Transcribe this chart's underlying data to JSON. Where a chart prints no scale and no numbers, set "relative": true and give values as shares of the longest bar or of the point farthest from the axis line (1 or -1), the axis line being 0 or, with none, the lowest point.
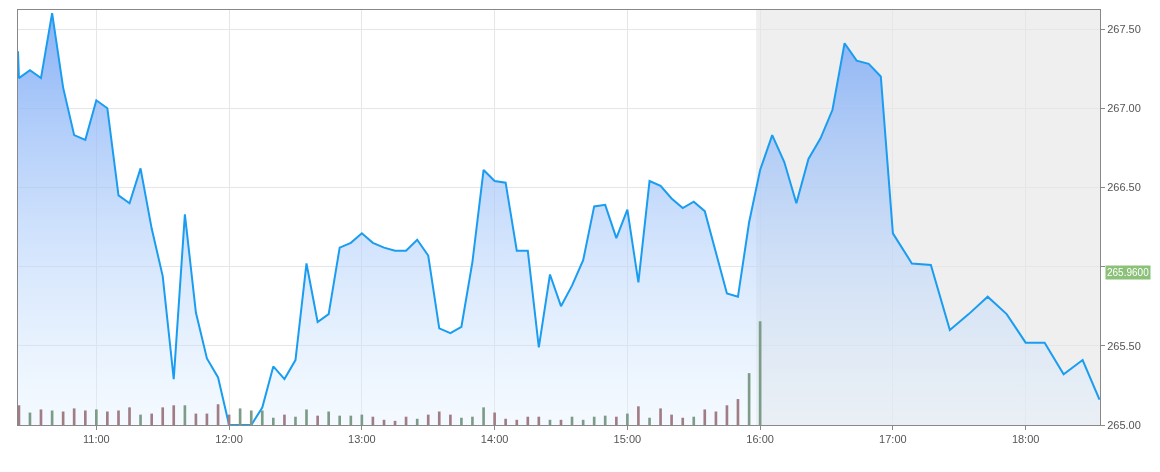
{
  "chart_data": [
    {
      "type": "area",
      "xlim": [
        10.41,
        18.56
      ],
      "ylim": [
        265.0,
        267.62
      ],
      "xticks": [
        {
          "value": 11,
          "label": "11:00"
        },
        {
          "value": 12,
          "label": "12:00"
        },
        {
          "value": 13,
          "label": "13:00"
        },
        {
          "value": 14,
          "label": "14:00"
        },
        {
          "value": 15,
          "label": "15:00"
        },
        {
          "value": 16,
          "label": "16:00"
        },
        {
          "value": 17,
          "label": "17:00"
        },
        {
          "value": 18,
          "label": "18:00"
        }
      ],
      "yticks": [
        {
          "value": 265.0,
          "label": "265.00"
        },
        {
          "value": 265.5,
          "label": "265.50"
        },
        {
          "value": 266.0,
          "label": null
        },
        {
          "value": 266.5,
          "label": "266.50"
        },
        {
          "value": 267.0,
          "label": "267.00"
        },
        {
          "value": 267.5,
          "label": "267.50"
        }
      ],
      "grid": true,
      "marker": "none",
      "line_style": "solid",
      "series": [
        {
          "color": "#1a9df0",
          "x": [
            10.41,
            10.417,
            10.5,
            10.583,
            10.667,
            10.75,
            10.833,
            10.917,
            11,
            11.083,
            11.167,
            11.25,
            11.333,
            11.417,
            11.5,
            11.583,
            11.667,
            11.75,
            11.833,
            11.917,
            12,
            12.083,
            12.167,
            12.25,
            12.333,
            12.417,
            12.5,
            12.583,
            12.667,
            12.75,
            12.833,
            12.917,
            13,
            13.083,
            13.167,
            13.25,
            13.333,
            13.417,
            13.5,
            13.583,
            13.667,
            13.75,
            13.833,
            13.917,
            14,
            14.083,
            14.167,
            14.25,
            14.333,
            14.417,
            14.5,
            14.583,
            14.667,
            14.75,
            14.833,
            14.917,
            15,
            15.083,
            15.167,
            15.25,
            15.333,
            15.417,
            15.5,
            15.583,
            15.75,
            15.833,
            15.917,
            16,
            16.091,
            16.182,
            16.273,
            16.364,
            16.455,
            16.545,
            16.636,
            16.727,
            16.818,
            16.909,
            17,
            17.143,
            17.286,
            17.429,
            17.571,
            17.714,
            17.857,
            18,
            18.143,
            18.286,
            18.429,
            18.556
          ],
          "values": [
            267.36,
            267.19,
            267.24,
            267.19,
            267.6,
            267.13,
            266.83,
            266.8,
            267.05,
            267.0,
            266.45,
            266.4,
            266.62,
            266.24,
            265.94,
            265.29,
            266.33,
            265.71,
            265.42,
            265.3,
            265.0,
            265.0,
            265.0,
            265.11,
            265.37,
            265.29,
            265.41,
            266.02,
            265.65,
            265.7,
            266.12,
            266.15,
            266.21,
            266.15,
            266.12,
            266.1,
            266.1,
            266.17,
            266.07,
            265.61,
            265.58,
            265.62,
            266.03,
            266.61,
            266.54,
            266.53,
            266.1,
            266.1,
            265.49,
            265.95,
            265.75,
            265.88,
            266.04,
            266.38,
            266.39,
            266.18,
            266.36,
            265.9,
            266.54,
            266.51,
            266.43,
            266.37,
            266.41,
            266.35,
            265.83,
            265.81,
            266.28,
            266.61,
            266.83,
            266.66,
            266.4,
            266.68,
            266.81,
            266.99,
            267.41,
            267.3,
            267.28,
            267.2,
            266.21,
            266.02,
            266.01,
            265.6,
            265.7,
            265.81,
            265.7,
            265.52,
            265.52,
            265.32,
            265.41,
            265.16
          ]
        }
      ],
      "bands": [
        {
          "axis": "x",
          "from": 15.97,
          "to": 18.56,
          "color": "#efefef"
        }
      ],
      "annotations": [
        {
          "text": "265.9600",
          "x": 18.56,
          "y": 265.96
        }
      ]
    },
    {
      "type": "bar",
      "relative": true,
      "xlim": [
        10.41,
        18.56
      ],
      "x": [
        10.417,
        10.5,
        10.583,
        10.667,
        10.75,
        10.833,
        10.917,
        11,
        11.083,
        11.167,
        11.25,
        11.333,
        11.417,
        11.5,
        11.583,
        11.667,
        11.75,
        11.833,
        11.917,
        12,
        12.083,
        12.167,
        12.25,
        12.333,
        12.417,
        12.5,
        12.583,
        12.667,
        12.75,
        12.833,
        12.917,
        13,
        13.083,
        13.167,
        13.25,
        13.333,
        13.417,
        13.5,
        13.583,
        13.667,
        13.75,
        13.833,
        13.917,
        14,
        14.083,
        14.167,
        14.25,
        14.333,
        14.417,
        14.5,
        14.583,
        14.667,
        14.75,
        14.833,
        14.917,
        15,
        15.083,
        15.167,
        15.25,
        15.333,
        15.417,
        15.5,
        15.583,
        15.667,
        15.75,
        15.833,
        15.917,
        16
      ],
      "values": [
        0.19,
        0.12,
        0.15,
        0.14,
        0.13,
        0.16,
        0.14,
        0.15,
        0.13,
        0.14,
        0.17,
        0.1,
        0.11,
        0.17,
        0.19,
        0.19,
        0.11,
        0.11,
        0.2,
        0.1,
        0.16,
        0.14,
        0.14,
        0.07,
        0.1,
        0.08,
        0.15,
        0.09,
        0.13,
        0.09,
        0.09,
        0.1,
        0.08,
        0.05,
        0.04,
        0.08,
        0.06,
        0.1,
        0.13,
        0.1,
        0.07,
        0.08,
        0.17,
        0.12,
        0.06,
        0.05,
        0.08,
        0.08,
        0.05,
        0.05,
        0.08,
        0.05,
        0.08,
        0.09,
        0.08,
        0.11,
        0.18,
        0.07,
        0.16,
        0.1,
        0.07,
        0.08,
        0.15,
        0.13,
        0.19,
        0.25,
        0.5,
        1.0
      ],
      "colors": [
        "#a07c84",
        "#7d9c88",
        "#a07c84",
        "#7d9c88",
        "#a07c84",
        "#a07c84",
        "#a07c84",
        "#7d9c88",
        "#a07c84",
        "#a07c84",
        "#a07c84",
        "#7d9c88",
        "#a07c84",
        "#a07c84",
        "#a07c84",
        "#7d9c88",
        "#a07c84",
        "#a07c84",
        "#a07c84",
        "#a07c84",
        "#7d9c88",
        "#7d9c88",
        "#7d9c88",
        "#7d9c88",
        "#a07c84",
        "#7d9c88",
        "#7d9c88",
        "#a07c84",
        "#7d9c88",
        "#7d9c88",
        "#7d9c88",
        "#7d9c88",
        "#a07c84",
        "#a07c84",
        "#a07c84",
        "#a07c84",
        "#7d9c88",
        "#a07c84",
        "#a07c84",
        "#a07c84",
        "#7d9c88",
        "#7d9c88",
        "#7d9c88",
        "#a07c84",
        "#a07c84",
        "#a07c84",
        "#a07c84",
        "#a07c84",
        "#7d9c88",
        "#a07c84",
        "#7d9c88",
        "#7d9c88",
        "#7d9c88",
        "#7d9c88",
        "#a07c84",
        "#7d9c88",
        "#a07c84",
        "#7d9c88",
        "#a07c84",
        "#a07c84",
        "#a07c84",
        "#7d9c88",
        "#a07c84",
        "#a07c84",
        "#a07c84",
        "#a07c84",
        "#7d9c88",
        "#7d9c88"
      ]
    }
  ]
}
